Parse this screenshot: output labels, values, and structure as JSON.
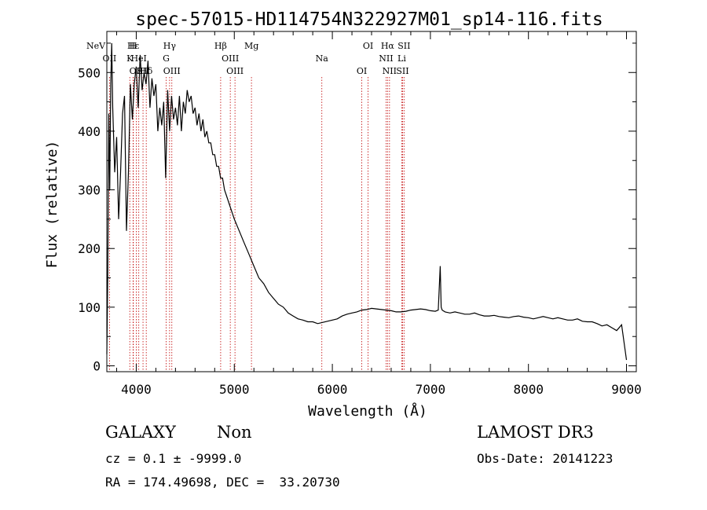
{
  "chart_data": {
    "type": "line",
    "title": "spec-57015-HD114754N322927M01_sp14-116.fits",
    "xlabel": "Wavelength (Å)",
    "ylabel": "Flux (relative)",
    "xlim": [
      3700,
      9100
    ],
    "ylim": [
      -10,
      570
    ],
    "x_ticks": [
      4000,
      5000,
      6000,
      7000,
      8000,
      9000
    ],
    "y_ticks": [
      0,
      100,
      200,
      300,
      400,
      500
    ],
    "grid": false,
    "legend": "none",
    "series": [
      {
        "x": [
          3700,
          3710,
          3720,
          3730,
          3740,
          3750,
          3760,
          3780,
          3800,
          3820,
          3840,
          3860,
          3880,
          3900,
          3920,
          3940,
          3960,
          3980,
          4000,
          4020,
          4040,
          4060,
          4080,
          4100,
          4120,
          4140,
          4160,
          4180,
          4200,
          4220,
          4240,
          4260,
          4280,
          4300,
          4320,
          4340,
          4360,
          4380,
          4400,
          4420,
          4440,
          4460,
          4480,
          4500,
          4520,
          4540,
          4560,
          4580,
          4600,
          4620,
          4640,
          4660,
          4680,
          4700,
          4720,
          4740,
          4760,
          4780,
          4800,
          4820,
          4840,
          4860,
          4880,
          4900,
          4920,
          4940,
          4960,
          4980,
          5000,
          5050,
          5100,
          5150,
          5200,
          5250,
          5300,
          5350,
          5400,
          5450,
          5500,
          5550,
          5600,
          5650,
          5700,
          5750,
          5800,
          5850,
          5900,
          5950,
          6000,
          6050,
          6100,
          6150,
          6200,
          6250,
          6300,
          6350,
          6400,
          6450,
          6500,
          6550,
          6600,
          6650,
          6700,
          6750,
          6800,
          6850,
          6900,
          6950,
          7000,
          7050,
          7080,
          7100,
          7110,
          7120,
          7150,
          7200,
          7250,
          7300,
          7350,
          7400,
          7450,
          7500,
          7550,
          7600,
          7650,
          7700,
          7750,
          7800,
          7850,
          7900,
          7950,
          8000,
          8050,
          8100,
          8150,
          8200,
          8250,
          8300,
          8350,
          8400,
          8450,
          8500,
          8550,
          8600,
          8650,
          8700,
          8750,
          8800,
          8850,
          8900,
          8950,
          9000
        ],
        "y": [
          20,
          160,
          430,
          300,
          480,
          550,
          440,
          330,
          390,
          250,
          330,
          430,
          460,
          230,
          330,
          480,
          420,
          480,
          510,
          440,
          530,
          470,
          500,
          480,
          520,
          440,
          490,
          460,
          480,
          400,
          440,
          410,
          450,
          320,
          470,
          400,
          460,
          420,
          440,
          410,
          460,
          400,
          450,
          430,
          470,
          450,
          460,
          430,
          440,
          410,
          430,
          400,
          420,
          390,
          400,
          380,
          380,
          360,
          360,
          340,
          340,
          320,
          320,
          300,
          290,
          280,
          270,
          260,
          250,
          230,
          210,
          190,
          170,
          150,
          140,
          125,
          115,
          105,
          100,
          90,
          85,
          80,
          78,
          75,
          75,
          72,
          74,
          76,
          78,
          80,
          85,
          88,
          90,
          92,
          95,
          96,
          98,
          97,
          96,
          95,
          94,
          92,
          92,
          93,
          95,
          96,
          97,
          96,
          94,
          93,
          95,
          170,
          100,
          95,
          92,
          90,
          92,
          90,
          88,
          88,
          90,
          87,
          85,
          85,
          86,
          84,
          83,
          82,
          84,
          85,
          83,
          82,
          80,
          82,
          84,
          82,
          80,
          82,
          80,
          78,
          78,
          80,
          76,
          75,
          75,
          72,
          68,
          70,
          65,
          60,
          70,
          10
        ]
      }
    ],
    "lines": [
      {
        "label": "NeV",
        "x": 3426
      },
      {
        "label": "OII",
        "x": 3727
      },
      {
        "label": "OII",
        "x": 4000
      },
      {
        "label": "Hε",
        "x": 3970
      },
      {
        "label": "HeI",
        "x": 4026
      },
      {
        "label": "Hδ",
        "x": 4102
      },
      {
        "label": "H",
        "x": 3968
      },
      {
        "label": "K",
        "x": 3934
      },
      {
        "label": "SII",
        "x": 4069
      },
      {
        "label": "Hγ",
        "x": 4340
      },
      {
        "label": "G",
        "x": 4305
      },
      {
        "label": "OIII",
        "x": 4363
      },
      {
        "label": "Hβ",
        "x": 4861
      },
      {
        "label": "OIII",
        "x": 4959
      },
      {
        "label": "OIII",
        "x": 5007
      },
      {
        "label": "Mg",
        "x": 5175
      },
      {
        "label": "Na",
        "x": 5893
      },
      {
        "label": "OI",
        "x": 6300
      },
      {
        "label": "OI",
        "x": 6364
      },
      {
        "label": "NII",
        "x": 6548
      },
      {
        "label": "NII",
        "x": 6583
      },
      {
        "label": "Hα",
        "x": 6563
      },
      {
        "label": "Li",
        "x": 6708
      },
      {
        "label": "SII",
        "x": 6716
      },
      {
        "label": "SII",
        "x": 6731
      }
    ],
    "line_color": "#c00000"
  },
  "info": {
    "class": "GALAXY",
    "subclass": "Non",
    "survey": "LAMOST DR3",
    "cz": "cz = 0.1 ± -9999.0",
    "obs_date": "Obs-Date: 20141223",
    "radec": "RA = 174.49698, DEC =  33.20730"
  }
}
